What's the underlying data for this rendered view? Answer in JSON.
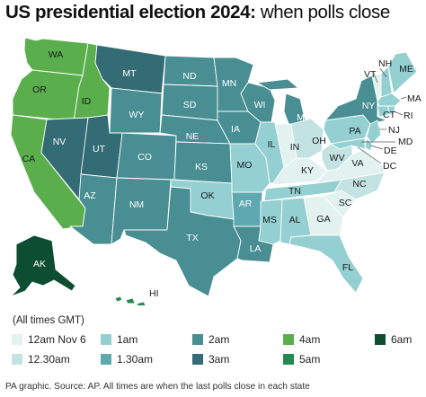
{
  "title": {
    "bold": "US presidential election 2024:",
    "light": "when polls close"
  },
  "legend": {
    "title": "(All times GMT)",
    "items": [
      {
        "key": "t12",
        "label": "12am Nov 6",
        "color": "#e2f2ef"
      },
      {
        "key": "t1230",
        "label": "12.30am",
        "color": "#c2e3e1"
      },
      {
        "key": "t1",
        "label": "1am",
        "color": "#94cfd1"
      },
      {
        "key": "t130",
        "label": "1.30am",
        "color": "#5ea8b0"
      },
      {
        "key": "t2",
        "label": "2am",
        "color": "#488e92"
      },
      {
        "key": "t3",
        "label": "3am",
        "color": "#336c74"
      },
      {
        "key": "t4",
        "label": "4am",
        "color": "#5aae4c"
      },
      {
        "key": "t5",
        "label": "5am",
        "color": "#218a50"
      },
      {
        "key": "t6",
        "label": "6am",
        "color": "#0d4d31"
      }
    ]
  },
  "states": {
    "WA": "WA",
    "OR": "OR",
    "CA": "CA",
    "ID": "ID",
    "NV": "NV",
    "UT": "UT",
    "AZ": "AZ",
    "MT": "MT",
    "WY": "WY",
    "CO": "CO",
    "NM": "NM",
    "ND": "ND",
    "SD": "SD",
    "NE": "NE",
    "KS": "KS",
    "OK": "OK",
    "TX": "TX",
    "MN": "MN",
    "IA": "IA",
    "MO": "MO",
    "AR": "AR",
    "LA": "LA",
    "WI": "WI",
    "IL": "IL",
    "MI": "MI",
    "IN": "IN",
    "OH": "OH",
    "KY": "KY",
    "TN": "TN",
    "MS": "MS",
    "AL": "AL",
    "GA": "GA",
    "FL": "FL",
    "SC": "SC",
    "NC": "NC",
    "VA": "VA",
    "WV": "WV",
    "PA": "PA",
    "NY": "NY",
    "ME": "ME",
    "NH": "NH",
    "VT": "VT",
    "MA": "MA",
    "RI": "RI",
    "CT": "CT",
    "NJ": "NJ",
    "DE": "DE",
    "MD": "MD",
    "DC": "DC",
    "AK": "AK",
    "HI": "HI"
  },
  "source": "PA graphic. Source: AP. All times are when the last polls close in each state"
}
